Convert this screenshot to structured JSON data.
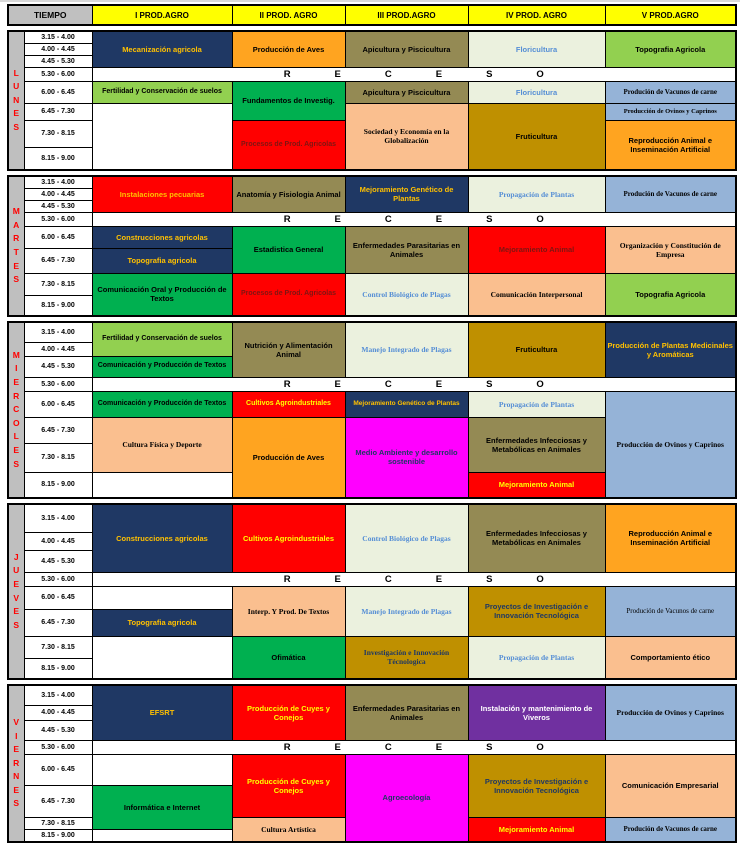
{
  "header": {
    "tiempo": "TIEMPO",
    "columns": [
      "I PROD.AGRO",
      "II PROD. AGRO",
      "III  PROD.AGRO",
      "IV PROD. AGRO",
      "V  PROD.AGRO"
    ]
  },
  "times": [
    "3.15 - 4.00",
    "4.00 - 4.45",
    "4.45 - 5.30",
    "5.30 - 6.00",
    "6.00 - 6.45",
    "6.45 - 7.30",
    "7.30 - 8.15",
    "8.15 - 9.00"
  ],
  "receso": "RECESO",
  "colors": {
    "navy": "#1F3864",
    "gold": "#FFC000",
    "orange": "#FFA420",
    "khaki": "#948A54",
    "pale": "#EBF1DE",
    "blue": "#558ED5",
    "green": "#00B050",
    "lgreen": "#92D050",
    "red": "#FF0000",
    "maroon": "#7F1512",
    "peach": "#FABF8F",
    "goldbg": "#BF9000",
    "bluebg": "#95B3D7",
    "magenta": "#FF00FF",
    "purple": "#7030A0",
    "white": "#FFFFFF",
    "black": "#000000",
    "yellow": "#FFFF00",
    "wtext": "#FFFFFF",
    "header_yellow": "#FFFF00",
    "header_gray": "#C0C0C0",
    "day_letter_red": "#FF0000"
  },
  "days": [
    {
      "name": "LUNES",
      "columns": [
        [
          {
            "r": 1,
            "s": 3,
            "t": "Mecanización agricola",
            "bg": "navy",
            "fg": "gold"
          },
          {
            "r": 5,
            "s": 1,
            "t": "Fertilidad y Conservación de suelos",
            "bg": "lgreen",
            "fg": "black",
            "fs": 7
          },
          {
            "r": 6,
            "s": 3,
            "t": "",
            "bg": "white",
            "fg": "black"
          }
        ],
        [
          {
            "r": 1,
            "s": 3,
            "t": "Producción de Aves",
            "bg": "orange",
            "fg": "black"
          },
          {
            "r": 5,
            "s": 2,
            "t": "Fundamentos de Investig.",
            "bg": "green",
            "fg": "black"
          },
          {
            "r": 7,
            "s": 2,
            "t": "Procesos de Prod. Agricolas",
            "bg": "red",
            "fg": "maroon",
            "fs": 7
          }
        ],
        [
          {
            "r": 1,
            "s": 3,
            "t": "Apicultura y Piscicultura",
            "bg": "khaki",
            "fg": "black"
          },
          {
            "r": 5,
            "s": 1,
            "t": "Apicultura y Piscicultura",
            "bg": "khaki",
            "fg": "black"
          },
          {
            "r": 6,
            "s": 3,
            "t": "Sociedad y Economía en la Globalización",
            "bg": "peach",
            "fg": "black",
            "f": "serif"
          }
        ],
        [
          {
            "r": 1,
            "s": 3,
            "t": "Floricultura",
            "bg": "pale",
            "fg": "blue"
          },
          {
            "r": 5,
            "s": 1,
            "t": "Floricultura",
            "bg": "pale",
            "fg": "blue"
          },
          {
            "r": 6,
            "s": 3,
            "t": "Fruticultura",
            "bg": "goldbg",
            "fg": "black"
          }
        ],
        [
          {
            "r": 1,
            "s": 3,
            "t": "Topografia Agricola",
            "bg": "lgreen",
            "fg": "black"
          },
          {
            "r": 5,
            "s": 1,
            "t": "Produción de  Vacunos de carne",
            "bg": "bluebg",
            "fg": "black",
            "f": "serif",
            "fs": 7
          },
          {
            "r": 6,
            "s": 1,
            "t": "Producción  de Ovinos y Caprinos",
            "bg": "bluebg",
            "fg": "black",
            "f": "serif",
            "fs": 6.5
          },
          {
            "r": 7,
            "s": 2,
            "t": "Reproducción Animal e Inseminación  Artificial",
            "bg": "orange",
            "fg": "black"
          }
        ]
      ]
    },
    {
      "name": "MARTES",
      "columns": [
        [
          {
            "r": 1,
            "s": 3,
            "t": "Instalaciones pecuarias",
            "bg": "red",
            "fg": "gold"
          },
          {
            "r": 5,
            "s": 1,
            "t": "Construcciones agricolas",
            "bg": "navy",
            "fg": "gold"
          },
          {
            "r": 6,
            "s": 1,
            "t": "Topografia agricola",
            "bg": "navy",
            "fg": "gold"
          },
          {
            "r": 7,
            "s": 2,
            "t": "Comunicación Oral y Producción de Textos",
            "bg": "green",
            "fg": "black"
          }
        ],
        [
          {
            "r": 1,
            "s": 3,
            "t": "Anatomía y Fisiologia Animal",
            "bg": "khaki",
            "fg": "black"
          },
          {
            "r": 5,
            "s": 2,
            "t": "Estadistica General",
            "bg": "green",
            "fg": "black"
          },
          {
            "r": 7,
            "s": 2,
            "t": "Procesos de Prod. Agricolas",
            "bg": "red",
            "fg": "maroon",
            "fs": 7
          }
        ],
        [
          {
            "r": 1,
            "s": 3,
            "t": "Mejoramiento  Genético de Plantas",
            "bg": "navy",
            "fg": "gold"
          },
          {
            "r": 5,
            "s": 2,
            "t": "Enfermedades Parasitarias en Animales",
            "bg": "khaki",
            "fg": "black"
          },
          {
            "r": 7,
            "s": 2,
            "t": "Control  Biológico de Plagas",
            "bg": "pale",
            "fg": "blue",
            "f": "serif"
          }
        ],
        [
          {
            "r": 1,
            "s": 3,
            "t": "Propagación de Plantas",
            "bg": "pale",
            "fg": "blue",
            "f": "serif"
          },
          {
            "r": 5,
            "s": 2,
            "t": "Mejoramiento Animal",
            "bg": "red",
            "fg": "maroon"
          },
          {
            "r": 7,
            "s": 2,
            "t": "Comunicación Interpersonal",
            "bg": "peach",
            "fg": "black",
            "f": "serif"
          }
        ],
        [
          {
            "r": 1,
            "s": 3,
            "t": "Produción de  Vacunos de carne",
            "bg": "bluebg",
            "fg": "black",
            "f": "serif",
            "fs": 7
          },
          {
            "r": 5,
            "s": 2,
            "t": "Organización  y Constitución de Empresa",
            "bg": "peach",
            "fg": "black",
            "f": "serif"
          },
          {
            "r": 7,
            "s": 2,
            "t": "Topografia Agricola",
            "bg": "lgreen",
            "fg": "black"
          }
        ]
      ]
    },
    {
      "name": "MIERCOLES",
      "columns": [
        [
          {
            "r": 1,
            "s": 2,
            "t": "Fertilidad y Conservación de suelos",
            "bg": "lgreen",
            "fg": "black",
            "fs": 7
          },
          {
            "r": 3,
            "s": 1,
            "t": "Comunicación y Producción de Textos",
            "bg": "green",
            "fg": "black",
            "fs": 7
          },
          {
            "r": 5,
            "s": 1,
            "t": "Comunicación y Producción de Textos",
            "bg": "green",
            "fg": "black",
            "fs": 7
          },
          {
            "r": 6,
            "s": 2,
            "t": "Cultura Física y Deporte",
            "bg": "peach",
            "fg": "black",
            "f": "serif"
          },
          {
            "r": 8,
            "s": 1,
            "t": "",
            "bg": "white",
            "fg": "black"
          }
        ],
        [
          {
            "r": 1,
            "s": 3,
            "t": "Nutrición y Alimentación Animal",
            "bg": "khaki",
            "fg": "black"
          },
          {
            "r": 5,
            "s": 1,
            "t": "Cultivos Agroindustriales",
            "bg": "red",
            "fg": "yellow",
            "fs": 7
          },
          {
            "r": 6,
            "s": 3,
            "t": "Producción de Aves",
            "bg": "orange",
            "fg": "black"
          }
        ],
        [
          {
            "r": 1,
            "s": 3,
            "t": "Manejo Integrado de Plagas",
            "bg": "pale",
            "fg": "blue",
            "f": "serif"
          },
          {
            "r": 5,
            "s": 1,
            "t": "Mejoramiento Genético de Plantas",
            "bg": "navy",
            "fg": "gold",
            "fs": 6.5
          },
          {
            "r": 6,
            "s": 3,
            "t": "Medio Ambiente y desarrollo sostenible",
            "bg": "magenta",
            "fg": "navy"
          }
        ],
        [
          {
            "r": 1,
            "s": 3,
            "t": "Fruticultura",
            "bg": "goldbg",
            "fg": "black"
          },
          {
            "r": 5,
            "s": 1,
            "t": "Propagación de Plantas",
            "bg": "pale",
            "fg": "blue",
            "f": "serif"
          },
          {
            "r": 6,
            "s": 2,
            "t": "Enfermedades Infecciosas y Metabólicas en Animales",
            "bg": "khaki",
            "fg": "black"
          },
          {
            "r": 8,
            "s": 1,
            "t": "Mejoramiento Animal",
            "bg": "red",
            "fg": "yellow"
          }
        ],
        [
          {
            "r": 1,
            "s": 3,
            "t": "Producción  de Plantas Medicinales  y Aromáticas",
            "bg": "navy",
            "fg": "gold"
          },
          {
            "r": 5,
            "s": 4,
            "t": "Producción  de Ovinos y Caprinos",
            "bg": "bluebg",
            "fg": "black",
            "f": "serif"
          }
        ]
      ]
    },
    {
      "name": "JUEVES",
      "columns": [
        [
          {
            "r": 1,
            "s": 3,
            "t": "Construcciones agricolas",
            "bg": "navy",
            "fg": "gold"
          },
          {
            "r": 5,
            "s": 1,
            "t": "",
            "bg": "white",
            "fg": "black"
          },
          {
            "r": 6,
            "s": 1,
            "t": "Topografia agricola",
            "bg": "navy",
            "fg": "gold"
          },
          {
            "r": 7,
            "s": 2,
            "t": "",
            "bg": "white",
            "fg": "black"
          }
        ],
        [
          {
            "r": 1,
            "s": 3,
            "t": "Cultivos Agroindustriales",
            "bg": "red",
            "fg": "yellow"
          },
          {
            "r": 5,
            "s": 2,
            "t": "Interp. Y Prod. De Textos",
            "bg": "peach",
            "fg": "black",
            "f": "serif"
          },
          {
            "r": 7,
            "s": 2,
            "t": "Ofimática",
            "bg": "green",
            "fg": "black"
          }
        ],
        [
          {
            "r": 1,
            "s": 3,
            "t": "Control  Biológico de Plagas",
            "bg": "pale",
            "fg": "blue",
            "f": "serif"
          },
          {
            "r": 5,
            "s": 2,
            "t": "Manejo Integrado de Plagas",
            "bg": "pale",
            "fg": "blue",
            "f": "serif"
          },
          {
            "r": 7,
            "s": 2,
            "t": "Investigación  e Innovación Técnologica",
            "bg": "goldbg",
            "fg": "navy",
            "f": "serif"
          }
        ],
        [
          {
            "r": 1,
            "s": 3,
            "t": "Enfermedades Infecciosas y Metabólicas en Animales",
            "bg": "khaki",
            "fg": "black"
          },
          {
            "r": 5,
            "s": 2,
            "t": "Proyectos de Investigación e Innovación Tecnológica",
            "bg": "goldbg",
            "fg": "navy"
          },
          {
            "r": 7,
            "s": 2,
            "t": "Propagación de Plantas",
            "bg": "pale",
            "fg": "blue",
            "f": "serif"
          }
        ],
        [
          {
            "r": 1,
            "s": 3,
            "t": "Reproducción Animal e Inseminación  Artificial",
            "bg": "orange",
            "fg": "black"
          },
          {
            "r": 5,
            "s": 2,
            "t": "Produción de  Vacunos de carne",
            "bg": "bluebg",
            "fg": "black",
            "f": "serif",
            "w": "n",
            "fs": 7
          },
          {
            "r": 7,
            "s": 2,
            "t": "Comportamiento ético",
            "bg": "peach",
            "fg": "black"
          }
        ]
      ]
    },
    {
      "name": "VIERNES",
      "columns": [
        [
          {
            "r": 1,
            "s": 3,
            "t": "EFSRT",
            "bg": "navy",
            "fg": "gold"
          },
          {
            "r": 5,
            "s": 1,
            "t": "",
            "bg": "white",
            "fg": "black"
          },
          {
            "r": 6,
            "s": 2,
            "t": "Informática e Internet",
            "bg": "green",
            "fg": "black"
          },
          {
            "r": 8,
            "s": 1,
            "t": "",
            "bg": "white",
            "fg": "black"
          }
        ],
        [
          {
            "r": 1,
            "s": 3,
            "t": "Producción de Cuyes y Conejos",
            "bg": "red",
            "fg": "yellow"
          },
          {
            "r": 5,
            "s": 2,
            "t": "Producción de Cuyes y Conejos",
            "bg": "red",
            "fg": "yellow"
          },
          {
            "r": 7,
            "s": 2,
            "t": "Cultura Artística",
            "bg": "peach",
            "fg": "black",
            "f": "serif"
          }
        ],
        [
          {
            "r": 1,
            "s": 3,
            "t": "Enfermedades Parasitarias en Animales",
            "bg": "khaki",
            "fg": "black"
          },
          {
            "r": 5,
            "s": 4,
            "t": "Agroecología",
            "bg": "magenta",
            "fg": "navy"
          }
        ],
        [
          {
            "r": 1,
            "s": 3,
            "t": "Instalación y mantenimiento de Viveros",
            "bg": "purple",
            "fg": "wtext"
          },
          {
            "r": 5,
            "s": 2,
            "t": "Proyectos de Investigación e Innovación Tecnológica",
            "bg": "goldbg",
            "fg": "navy"
          },
          {
            "r": 7,
            "s": 2,
            "t": "Mejoramiento Animal",
            "bg": "red",
            "fg": "yellow"
          }
        ],
        [
          {
            "r": 1,
            "s": 3,
            "t": "Producción  de Ovinos y Caprinos",
            "bg": "bluebg",
            "fg": "black",
            "f": "serif"
          },
          {
            "r": 5,
            "s": 2,
            "t": "Comunicación Empresarial",
            "bg": "peach",
            "fg": "black"
          },
          {
            "r": 7,
            "s": 2,
            "t": "Produción de  Vacunos de carne",
            "bg": "bluebg",
            "fg": "black",
            "f": "serif",
            "fs": 7
          }
        ]
      ]
    }
  ]
}
